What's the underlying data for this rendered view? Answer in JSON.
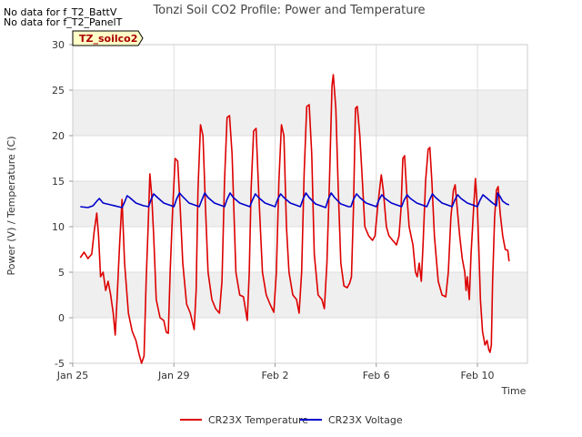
{
  "chart_data": {
    "type": "line",
    "title": "Tonzi Soil CO2 Profile: Power and Temperature",
    "xlabel": "Time",
    "ylabel": "Power (V) / Temperature (C)",
    "notes": [
      "No data for f_T2_BattV",
      "No data for f_T2_PanelT"
    ],
    "badge": "TZ_soilco2",
    "x_range": [
      0,
      16.4
    ],
    "ylim": [
      -5,
      30
    ],
    "x_ticks": [
      {
        "x": 0,
        "label": "Jan 25"
      },
      {
        "x": 4,
        "label": "Jan 29"
      },
      {
        "x": 8,
        "label": "Feb 2"
      },
      {
        "x": 12,
        "label": "Feb 6"
      },
      {
        "x": 16,
        "label": "Feb 10"
      }
    ],
    "y_ticks": [
      -5,
      0,
      5,
      10,
      15,
      20,
      25,
      30
    ],
    "grid": true,
    "legend_position": "bottom",
    "series": [
      {
        "name": "CR23X Temperature",
        "color": "#dd0000",
        "points": [
          [
            0.3,
            6.6
          ],
          [
            0.45,
            7.2
          ],
          [
            0.6,
            6.5
          ],
          [
            0.75,
            7.0
          ],
          [
            0.85,
            9.5
          ],
          [
            0.95,
            11.5
          ],
          [
            1.02,
            9.0
          ],
          [
            1.1,
            4.5
          ],
          [
            1.2,
            5.0
          ],
          [
            1.3,
            3.0
          ],
          [
            1.4,
            4.0
          ],
          [
            1.5,
            2.5
          ],
          [
            1.6,
            0.5
          ],
          [
            1.68,
            -1.9
          ],
          [
            1.75,
            2.0
          ],
          [
            1.85,
            8.0
          ],
          [
            1.95,
            13.0
          ],
          [
            2.05,
            6.0
          ],
          [
            2.2,
            0.5
          ],
          [
            2.35,
            -1.5
          ],
          [
            2.5,
            -2.5
          ],
          [
            2.62,
            -4.0
          ],
          [
            2.72,
            -5.0
          ],
          [
            2.82,
            -4.2
          ],
          [
            2.9,
            4.0
          ],
          [
            2.98,
            10.0
          ],
          [
            3.05,
            15.8
          ],
          [
            3.12,
            13.5
          ],
          [
            3.2,
            9.0
          ],
          [
            3.3,
            2.0
          ],
          [
            3.45,
            0.0
          ],
          [
            3.6,
            -0.3
          ],
          [
            3.7,
            -1.6
          ],
          [
            3.78,
            -1.7
          ],
          [
            3.85,
            5.0
          ],
          [
            3.95,
            12.0
          ],
          [
            4.05,
            17.5
          ],
          [
            4.15,
            17.2
          ],
          [
            4.25,
            12.0
          ],
          [
            4.35,
            6.0
          ],
          [
            4.5,
            1.5
          ],
          [
            4.65,
            0.5
          ],
          [
            4.8,
            -1.3
          ],
          [
            4.88,
            3.0
          ],
          [
            4.95,
            14.0
          ],
          [
            5.05,
            21.2
          ],
          [
            5.15,
            20.0
          ],
          [
            5.25,
            12.0
          ],
          [
            5.35,
            5.0
          ],
          [
            5.5,
            2.0
          ],
          [
            5.65,
            1.0
          ],
          [
            5.8,
            0.5
          ],
          [
            5.9,
            4.0
          ],
          [
            6.0,
            15.0
          ],
          [
            6.1,
            22.0
          ],
          [
            6.2,
            22.2
          ],
          [
            6.3,
            18.0
          ],
          [
            6.45,
            5.0
          ],
          [
            6.6,
            2.5
          ],
          [
            6.75,
            2.3
          ],
          [
            6.9,
            -0.3
          ],
          [
            6.98,
            5.0
          ],
          [
            7.05,
            14.0
          ],
          [
            7.15,
            20.5
          ],
          [
            7.25,
            20.8
          ],
          [
            7.35,
            14.0
          ],
          [
            7.5,
            5.0
          ],
          [
            7.65,
            2.5
          ],
          [
            7.8,
            1.5
          ],
          [
            7.95,
            0.6
          ],
          [
            8.05,
            5.0
          ],
          [
            8.15,
            15.0
          ],
          [
            8.25,
            21.2
          ],
          [
            8.35,
            20.0
          ],
          [
            8.45,
            10.0
          ],
          [
            8.55,
            5.0
          ],
          [
            8.7,
            2.5
          ],
          [
            8.85,
            2.0
          ],
          [
            8.95,
            0.5
          ],
          [
            9.05,
            5.0
          ],
          [
            9.15,
            16.0
          ],
          [
            9.25,
            23.2
          ],
          [
            9.35,
            23.4
          ],
          [
            9.45,
            18.0
          ],
          [
            9.55,
            7.0
          ],
          [
            9.7,
            2.5
          ],
          [
            9.85,
            2.0
          ],
          [
            9.95,
            1.0
          ],
          [
            10.05,
            6.0
          ],
          [
            10.15,
            15.0
          ],
          [
            10.25,
            25.5
          ],
          [
            10.3,
            26.7
          ],
          [
            10.4,
            23.0
          ],
          [
            10.5,
            14.0
          ],
          [
            10.6,
            6.0
          ],
          [
            10.72,
            3.5
          ],
          [
            10.85,
            3.3
          ],
          [
            10.95,
            3.8
          ],
          [
            11.02,
            4.5
          ],
          [
            11.1,
            12.0
          ],
          [
            11.18,
            23.0
          ],
          [
            11.25,
            23.2
          ],
          [
            11.35,
            20.0
          ],
          [
            11.45,
            15.0
          ],
          [
            11.55,
            10.0
          ],
          [
            11.7,
            9.0
          ],
          [
            11.85,
            8.5
          ],
          [
            11.95,
            9.0
          ],
          [
            12.05,
            12.0
          ],
          [
            12.15,
            14.5
          ],
          [
            12.2,
            15.7
          ],
          [
            12.28,
            14.0
          ],
          [
            12.4,
            10.0
          ],
          [
            12.5,
            9.0
          ],
          [
            12.65,
            8.5
          ],
          [
            12.8,
            8.0
          ],
          [
            12.9,
            9.0
          ],
          [
            12.98,
            12.0
          ],
          [
            13.05,
            17.5
          ],
          [
            13.12,
            17.8
          ],
          [
            13.2,
            14.0
          ],
          [
            13.3,
            10.0
          ],
          [
            13.45,
            8.0
          ],
          [
            13.55,
            5.0
          ],
          [
            13.62,
            4.5
          ],
          [
            13.7,
            6.0
          ],
          [
            13.78,
            4.0
          ],
          [
            13.85,
            8.0
          ],
          [
            13.95,
            15.0
          ],
          [
            14.05,
            18.5
          ],
          [
            14.12,
            18.7
          ],
          [
            14.2,
            15.0
          ],
          [
            14.3,
            9.0
          ],
          [
            14.45,
            4.0
          ],
          [
            14.6,
            2.5
          ],
          [
            14.75,
            2.3
          ],
          [
            14.85,
            5.0
          ],
          [
            14.95,
            11.0
          ],
          [
            15.05,
            14.0
          ],
          [
            15.12,
            14.6
          ],
          [
            15.2,
            12.0
          ],
          [
            15.3,
            9.0
          ],
          [
            15.4,
            6.5
          ],
          [
            15.5,
            5.0
          ],
          [
            15.55,
            3.0
          ],
          [
            15.6,
            4.5
          ],
          [
            15.68,
            2.0
          ],
          [
            15.75,
            7.0
          ],
          [
            15.85,
            12.0
          ],
          [
            15.92,
            15.3
          ],
          [
            16.0,
            12.0
          ],
          [
            16.05,
            8.0
          ],
          [
            16.12,
            2.0
          ],
          [
            16.2,
            -1.5
          ],
          [
            16.3,
            -3.0
          ],
          [
            16.38,
            -2.5
          ],
          [
            16.45,
            -3.5
          ],
          [
            16.5,
            -3.8
          ],
          [
            16.55,
            -3.0
          ],
          [
            16.6,
            4.0
          ],
          [
            16.68,
            11.0
          ],
          [
            16.75,
            14.0
          ],
          [
            16.82,
            14.4
          ],
          [
            16.9,
            11.5
          ],
          [
            17.0,
            9.0
          ],
          [
            17.1,
            7.5
          ],
          [
            17.2,
            7.4
          ],
          [
            17.25,
            6.2
          ]
        ]
      },
      {
        "name": "CR23X Voltage",
        "color": "#0000cc",
        "points": [
          [
            0.3,
            12.2
          ],
          [
            0.6,
            12.1
          ],
          [
            0.8,
            12.3
          ],
          [
            0.95,
            12.8
          ],
          [
            1.05,
            13.1
          ],
          [
            1.2,
            12.6
          ],
          [
            1.5,
            12.4
          ],
          [
            1.8,
            12.2
          ],
          [
            1.95,
            12.1
          ],
          [
            2.05,
            12.7
          ],
          [
            2.15,
            13.4
          ],
          [
            2.25,
            13.2
          ],
          [
            2.5,
            12.6
          ],
          [
            2.8,
            12.3
          ],
          [
            3.0,
            12.2
          ],
          [
            3.1,
            13.0
          ],
          [
            3.2,
            13.6
          ],
          [
            3.35,
            13.2
          ],
          [
            3.6,
            12.6
          ],
          [
            3.9,
            12.3
          ],
          [
            4.0,
            12.2
          ],
          [
            4.1,
            13.0
          ],
          [
            4.22,
            13.7
          ],
          [
            4.35,
            13.3
          ],
          [
            4.6,
            12.6
          ],
          [
            4.9,
            12.3
          ],
          [
            5.0,
            12.2
          ],
          [
            5.1,
            12.9
          ],
          [
            5.22,
            13.7
          ],
          [
            5.35,
            13.2
          ],
          [
            5.6,
            12.6
          ],
          [
            5.9,
            12.3
          ],
          [
            6.0,
            12.2
          ],
          [
            6.1,
            13.0
          ],
          [
            6.22,
            13.7
          ],
          [
            6.35,
            13.2
          ],
          [
            6.6,
            12.6
          ],
          [
            6.9,
            12.3
          ],
          [
            7.0,
            12.2
          ],
          [
            7.1,
            12.9
          ],
          [
            7.22,
            13.6
          ],
          [
            7.35,
            13.2
          ],
          [
            7.6,
            12.6
          ],
          [
            7.9,
            12.3
          ],
          [
            8.0,
            12.2
          ],
          [
            8.1,
            13.0
          ],
          [
            8.22,
            13.6
          ],
          [
            8.35,
            13.2
          ],
          [
            8.6,
            12.6
          ],
          [
            8.9,
            12.3
          ],
          [
            9.0,
            12.2
          ],
          [
            9.1,
            13.0
          ],
          [
            9.22,
            13.7
          ],
          [
            9.35,
            13.2
          ],
          [
            9.6,
            12.5
          ],
          [
            9.9,
            12.2
          ],
          [
            10.0,
            12.1
          ],
          [
            10.1,
            13.0
          ],
          [
            10.22,
            13.7
          ],
          [
            10.35,
            13.2
          ],
          [
            10.6,
            12.5
          ],
          [
            10.9,
            12.2
          ],
          [
            11.0,
            12.2
          ],
          [
            11.1,
            13.0
          ],
          [
            11.22,
            13.6
          ],
          [
            11.35,
            13.2
          ],
          [
            11.6,
            12.6
          ],
          [
            11.9,
            12.3
          ],
          [
            12.0,
            12.2
          ],
          [
            12.1,
            12.9
          ],
          [
            12.22,
            13.5
          ],
          [
            12.35,
            13.1
          ],
          [
            12.6,
            12.6
          ],
          [
            12.9,
            12.3
          ],
          [
            13.0,
            12.2
          ],
          [
            13.1,
            12.9
          ],
          [
            13.22,
            13.5
          ],
          [
            13.35,
            13.1
          ],
          [
            13.6,
            12.6
          ],
          [
            13.9,
            12.3
          ],
          [
            14.0,
            12.2
          ],
          [
            14.1,
            12.9
          ],
          [
            14.22,
            13.6
          ],
          [
            14.35,
            13.2
          ],
          [
            14.6,
            12.6
          ],
          [
            14.9,
            12.3
          ],
          [
            15.0,
            12.2
          ],
          [
            15.1,
            12.9
          ],
          [
            15.22,
            13.5
          ],
          [
            15.35,
            13.1
          ],
          [
            15.6,
            12.6
          ],
          [
            15.9,
            12.3
          ],
          [
            16.0,
            12.2
          ],
          [
            16.1,
            12.9
          ],
          [
            16.22,
            13.5
          ],
          [
            16.35,
            13.2
          ],
          [
            16.6,
            12.6
          ],
          [
            16.75,
            12.3
          ],
          [
            16.8,
            13.7
          ],
          [
            16.9,
            13.3
          ],
          [
            17.0,
            12.8
          ],
          [
            17.15,
            12.5
          ],
          [
            17.25,
            12.4
          ]
        ]
      }
    ]
  },
  "colors": {
    "band": "#efefef",
    "grid": "#dddddd",
    "badge_fill": "#ffffc8",
    "badge_text": "#aa0000"
  }
}
